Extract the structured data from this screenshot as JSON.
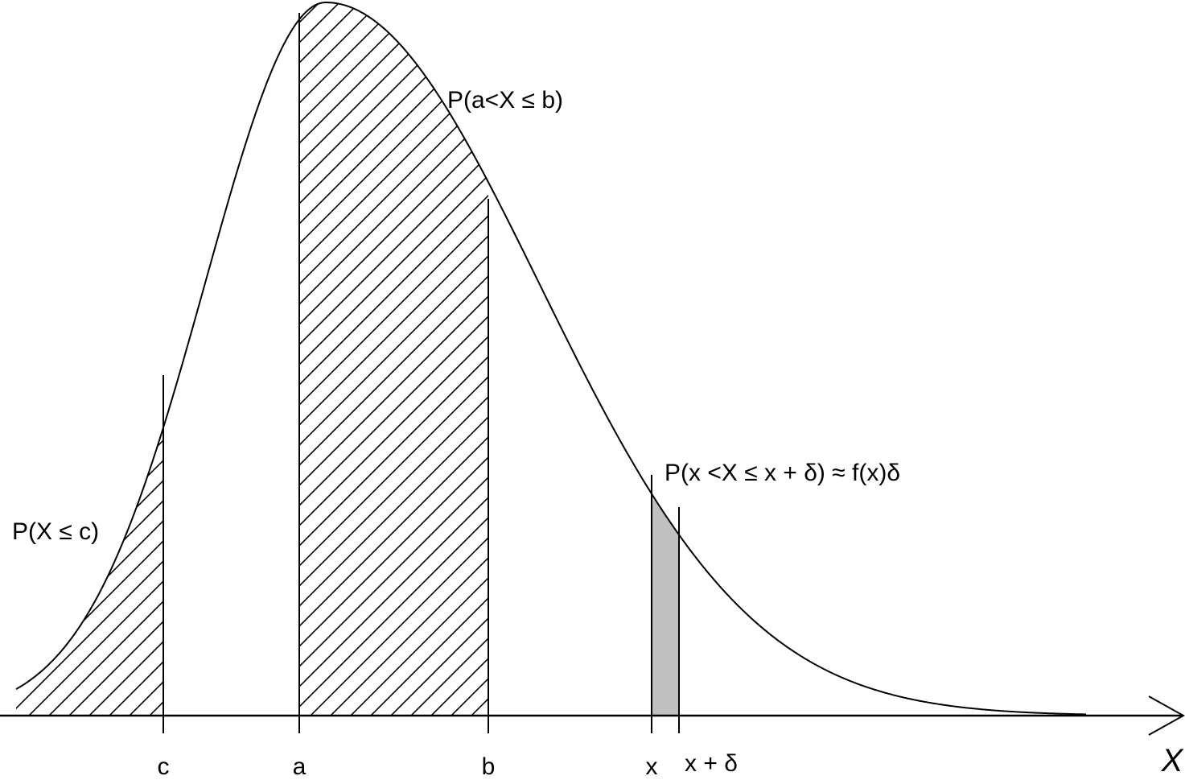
{
  "diagram": {
    "labels": {
      "prob_le_c": "P(X ≤ c)",
      "prob_a_b": "P(a<X ≤ b)",
      "prob_x_delta": "P(x <X ≤ x + δ) ≈ f(x)δ"
    },
    "ticks": {
      "c": "c",
      "a": "a",
      "b": "b",
      "x": "x",
      "x_plus_delta": "x + δ"
    },
    "axis_label": "X",
    "colors": {
      "line": "#000000",
      "small_strip_fill": "#c0c0c0",
      "background": "#ffffff"
    }
  }
}
